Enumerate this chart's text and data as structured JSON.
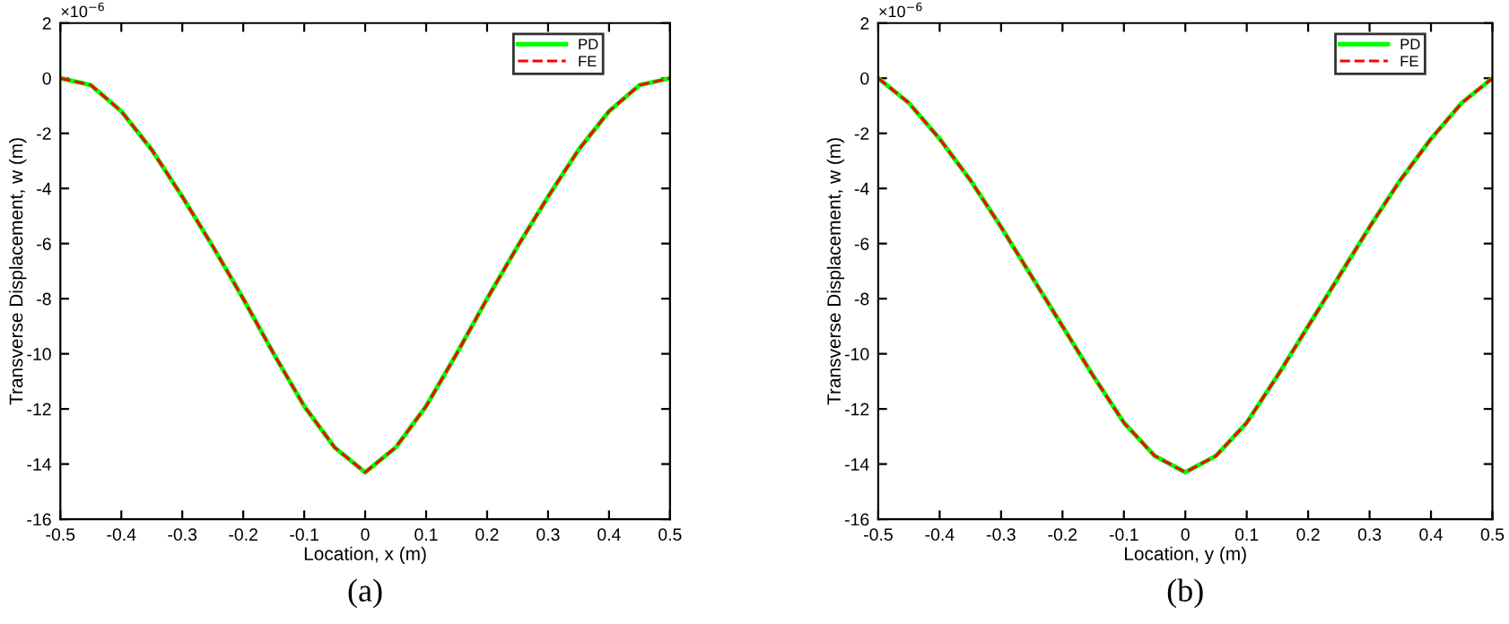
{
  "chart_data": [
    {
      "type": "line",
      "xlabel": "Location, x (m)",
      "ylabel": "Transverse Displacement, w (m)",
      "annotations": [
        "×10$^{−6}$",
        "(a)"
      ],
      "x": [
        -0.5,
        -0.45,
        -0.4,
        -0.35,
        -0.3,
        -0.25,
        -0.2,
        -0.15,
        -0.1,
        -0.05,
        0,
        0.05,
        0.1,
        0.15,
        0.2,
        0.25,
        0.3,
        0.35,
        0.4,
        0.45,
        0.5
      ],
      "series": [
        {
          "name": "PD",
          "color": "#00ff00",
          "line_style": "solid",
          "values": [
            0,
            -0.25,
            -1.2,
            -2.6,
            -4.3,
            -6.1,
            -8.0,
            -10.0,
            -11.9,
            -13.4,
            -14.3,
            -13.4,
            -11.9,
            -10.0,
            -8.0,
            -6.1,
            -4.3,
            -2.6,
            -1.2,
            -0.25,
            0
          ]
        },
        {
          "name": "FE",
          "color": "#ff0000",
          "line_style": "dashed",
          "values": [
            0,
            -0.25,
            -1.2,
            -2.6,
            -4.3,
            -6.1,
            -8.0,
            -10.0,
            -11.9,
            -13.4,
            -14.3,
            -13.4,
            -11.9,
            -10.0,
            -8.0,
            -6.1,
            -4.3,
            -2.6,
            -1.2,
            -0.25,
            0
          ]
        }
      ],
      "xlim": [
        -0.5,
        0.5
      ],
      "xticks": [
        -0.5,
        -0.4,
        -0.3,
        -0.2,
        -0.1,
        0,
        0.1,
        0.2,
        0.3,
        0.4,
        0.5
      ],
      "ylim": [
        -16,
        2
      ],
      "yticks": [
        -16,
        -14,
        -12,
        -10,
        -8,
        -6,
        -4,
        -2,
        0,
        2
      ],
      "grid": false,
      "legend": "top right"
    },
    {
      "type": "line",
      "xlabel": "Location, y (m)",
      "ylabel": "Transverse Displacement, w (m)",
      "annotations": [
        "×10$^{−6}$",
        "(b)"
      ],
      "x": [
        -0.5,
        -0.45,
        -0.4,
        -0.35,
        -0.3,
        -0.25,
        -0.2,
        -0.15,
        -0.1,
        -0.05,
        0,
        0.05,
        0.1,
        0.15,
        0.2,
        0.25,
        0.3,
        0.35,
        0.4,
        0.45,
        0.5
      ],
      "series": [
        {
          "name": "PD",
          "color": "#00ff00",
          "line_style": "solid",
          "values": [
            0,
            -0.9,
            -2.2,
            -3.7,
            -5.4,
            -7.2,
            -9.0,
            -10.8,
            -12.5,
            -13.7,
            -14.3,
            -13.7,
            -12.5,
            -10.8,
            -9.0,
            -7.2,
            -5.4,
            -3.7,
            -2.2,
            -0.9,
            0
          ]
        },
        {
          "name": "FE",
          "color": "#ff0000",
          "line_style": "dashed",
          "values": [
            0,
            -0.9,
            -2.2,
            -3.7,
            -5.4,
            -7.2,
            -9.0,
            -10.8,
            -12.5,
            -13.7,
            -14.3,
            -13.7,
            -12.5,
            -10.8,
            -9.0,
            -7.2,
            -5.4,
            -3.7,
            -2.2,
            -0.9,
            0
          ]
        }
      ],
      "xlim": [
        -0.5,
        0.5
      ],
      "xticks": [
        -0.5,
        -0.4,
        -0.3,
        -0.2,
        -0.1,
        0,
        0.1,
        0.2,
        0.3,
        0.4,
        0.5
      ],
      "ylim": [
        -16,
        2
      ],
      "yticks": [
        -16,
        -14,
        -12,
        -10,
        -8,
        -6,
        -4,
        -2,
        0,
        2
      ],
      "grid": false,
      "legend": "top right"
    }
  ]
}
